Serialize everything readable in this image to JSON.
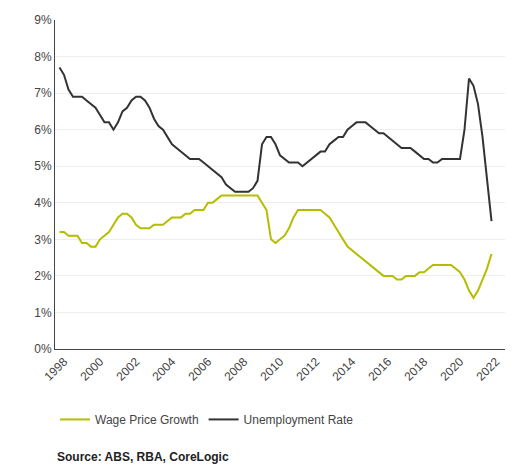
{
  "chart_data": {
    "type": "line",
    "annotations": [
      "Source: ABS, RBA, CoreLogic"
    ],
    "x": [
      1997.75,
      1998.0,
      1998.25,
      1998.5,
      1998.75,
      1999.0,
      1999.25,
      1999.5,
      1999.75,
      2000.0,
      2000.25,
      2000.5,
      2000.75,
      2001.0,
      2001.25,
      2001.5,
      2001.75,
      2002.0,
      2002.25,
      2002.5,
      2002.75,
      2003.0,
      2003.25,
      2003.5,
      2003.75,
      2004.0,
      2004.25,
      2004.5,
      2004.75,
      2005.0,
      2005.25,
      2005.5,
      2005.75,
      2006.0,
      2006.25,
      2006.5,
      2006.75,
      2007.0,
      2007.25,
      2007.5,
      2007.75,
      2008.0,
      2008.25,
      2008.5,
      2008.75,
      2009.0,
      2009.25,
      2009.5,
      2009.75,
      2010.0,
      2010.25,
      2010.5,
      2010.75,
      2011.0,
      2011.25,
      2011.5,
      2011.75,
      2012.0,
      2012.25,
      2012.5,
      2012.75,
      2013.0,
      2013.25,
      2013.5,
      2013.75,
      2014.0,
      2014.25,
      2014.5,
      2014.75,
      2015.0,
      2015.25,
      2015.5,
      2015.75,
      2016.0,
      2016.25,
      2016.5,
      2016.75,
      2017.0,
      2017.25,
      2017.5,
      2017.75,
      2018.0,
      2018.25,
      2018.5,
      2018.75,
      2019.0,
      2019.25,
      2019.5,
      2019.75,
      2020.0,
      2020.25,
      2020.5,
      2020.75,
      2021.0,
      2021.25,
      2021.5,
      2021.75
    ],
    "series": [
      {
        "name": "Wage Price Growth",
        "color": "#b5bd00",
        "values": [
          0.032,
          0.032,
          0.031,
          0.031,
          0.031,
          0.029,
          0.029,
          0.028,
          0.028,
          0.03,
          0.031,
          0.032,
          0.034,
          0.036,
          0.037,
          0.037,
          0.036,
          0.034,
          0.033,
          0.033,
          0.033,
          0.034,
          0.034,
          0.034,
          0.035,
          0.036,
          0.036,
          0.036,
          0.037,
          0.037,
          0.038,
          0.038,
          0.038,
          0.04,
          0.04,
          0.041,
          0.042,
          0.042,
          0.042,
          0.042,
          0.042,
          0.042,
          0.042,
          0.042,
          0.042,
          0.04,
          0.038,
          0.03,
          0.029,
          0.03,
          0.031,
          0.033,
          0.036,
          0.038,
          0.038,
          0.038,
          0.038,
          0.038,
          0.038,
          0.037,
          0.036,
          0.034,
          0.032,
          0.03,
          0.028,
          0.027,
          0.026,
          0.025,
          0.024,
          0.023,
          0.022,
          0.021,
          0.02,
          0.02,
          0.02,
          0.019,
          0.019,
          0.02,
          0.02,
          0.02,
          0.021,
          0.021,
          0.022,
          0.023,
          0.023,
          0.023,
          0.023,
          0.023,
          0.022,
          0.021,
          0.019,
          0.016,
          0.014,
          0.016,
          0.019,
          0.022,
          0.026
        ]
      },
      {
        "name": "Unemployment Rate",
        "color": "#333333",
        "values": [
          0.077,
          0.075,
          0.071,
          0.069,
          0.069,
          0.069,
          0.068,
          0.067,
          0.066,
          0.064,
          0.062,
          0.062,
          0.06,
          0.062,
          0.065,
          0.066,
          0.068,
          0.069,
          0.069,
          0.068,
          0.066,
          0.063,
          0.061,
          0.06,
          0.058,
          0.056,
          0.055,
          0.054,
          0.053,
          0.052,
          0.052,
          0.052,
          0.051,
          0.05,
          0.049,
          0.048,
          0.047,
          0.045,
          0.044,
          0.043,
          0.043,
          0.043,
          0.043,
          0.044,
          0.046,
          0.056,
          0.058,
          0.058,
          0.056,
          0.053,
          0.052,
          0.051,
          0.051,
          0.051,
          0.05,
          0.051,
          0.052,
          0.053,
          0.054,
          0.054,
          0.056,
          0.057,
          0.058,
          0.058,
          0.06,
          0.061,
          0.062,
          0.062,
          0.062,
          0.061,
          0.06,
          0.059,
          0.059,
          0.058,
          0.057,
          0.056,
          0.055,
          0.055,
          0.055,
          0.054,
          0.053,
          0.052,
          0.052,
          0.051,
          0.051,
          0.052,
          0.052,
          0.052,
          0.052,
          0.052,
          0.06,
          0.074,
          0.072,
          0.067,
          0.058,
          0.047,
          0.035
        ]
      }
    ],
    "xlim": [
      1997.5,
      2022.5
    ],
    "xticks": [
      1998,
      2000,
      2002,
      2004,
      2006,
      2008,
      2010,
      2012,
      2014,
      2016,
      2018,
      2020,
      2022
    ],
    "ylim": [
      0,
      0.09
    ],
    "yticks": [
      {
        "value": 0.0,
        "label": "0%"
      },
      {
        "value": 0.01,
        "label": "1%"
      },
      {
        "value": 0.02,
        "label": "2%"
      },
      {
        "value": 0.03,
        "label": "3%"
      },
      {
        "value": 0.04,
        "label": "4%"
      },
      {
        "value": 0.05,
        "label": "5%"
      },
      {
        "value": 0.06,
        "label": "6%"
      },
      {
        "value": 0.07,
        "label": "7%"
      },
      {
        "value": 0.08,
        "label": "8%"
      },
      {
        "value": 0.09,
        "label": "9%"
      }
    ],
    "grid": "y",
    "legend": "bottom"
  }
}
